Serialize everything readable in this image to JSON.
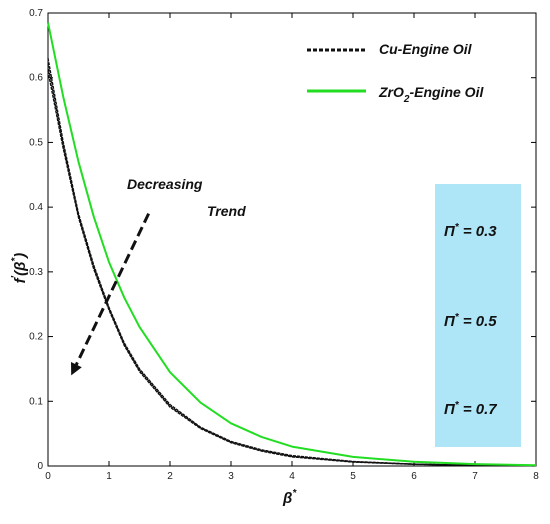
{
  "chart_data": {
    "type": "line",
    "xlim": [
      0,
      8
    ],
    "ylim": [
      0,
      0.7
    ],
    "x_ticks": [
      0,
      1,
      2,
      3,
      4,
      5,
      6,
      7,
      8
    ],
    "y_ticks": [
      0,
      0.1,
      0.2,
      0.3,
      0.4,
      0.5,
      0.6,
      0.7
    ],
    "xlabel": "β*",
    "ylabel": "f′(β*)",
    "grid": false,
    "legend_position": "top-right",
    "legend": [
      {
        "text": "Cu-Engine Oil",
        "style": "black dashed"
      },
      {
        "text": "ZrO2-Engine Oil",
        "style": "green solid"
      }
    ],
    "series": [
      {
        "name": "Cu-Engine Oil",
        "color": "#111111",
        "x": [
          0,
          0.25,
          0.5,
          0.75,
          1,
          1.25,
          1.5,
          2,
          2.5,
          3,
          3.5,
          4,
          5,
          6,
          7,
          8
        ],
        "curves": [
          [
            0.63,
            0.5,
            0.39,
            0.31,
            0.245,
            0.19,
            0.15,
            0.095,
            0.06,
            0.038,
            0.025,
            0.016,
            0.007,
            0.003,
            0.0012,
            0.0003
          ],
          [
            0.62,
            0.495,
            0.387,
            0.307,
            0.243,
            0.188,
            0.148,
            0.093,
            0.059,
            0.037,
            0.024,
            0.015,
            0.0065,
            0.0028,
            0.0011,
            0.0003
          ],
          [
            0.61,
            0.49,
            0.384,
            0.304,
            0.241,
            0.186,
            0.146,
            0.091,
            0.058,
            0.036,
            0.023,
            0.014,
            0.006,
            0.0026,
            0.001,
            0.0002
          ]
        ]
      },
      {
        "name": "ZrO2-Engine Oil",
        "color": "#22dd22",
        "x": [
          0,
          0.25,
          0.5,
          0.75,
          1,
          1.25,
          1.5,
          2,
          2.5,
          3,
          3.5,
          4,
          5,
          6,
          7,
          8
        ],
        "curves": [
          [
            0.685,
            0.57,
            0.47,
            0.385,
            0.315,
            0.26,
            0.215,
            0.145,
            0.098,
            0.066,
            0.045,
            0.03,
            0.014,
            0.0065,
            0.003,
            0.0012
          ]
        ]
      }
    ],
    "annotations": [
      {
        "type": "text",
        "lines": [
          "Decreasing",
          "Trend"
        ]
      },
      {
        "type": "dashed-arrow",
        "from": [
          1.65,
          0.39
        ],
        "to": [
          0.38,
          0.14
        ]
      }
    ],
    "pi_labels": [
      "Π* = 0.3",
      "Π* = 0.5",
      "Π* = 0.7"
    ],
    "pi_box_color": "#aee6f7"
  }
}
